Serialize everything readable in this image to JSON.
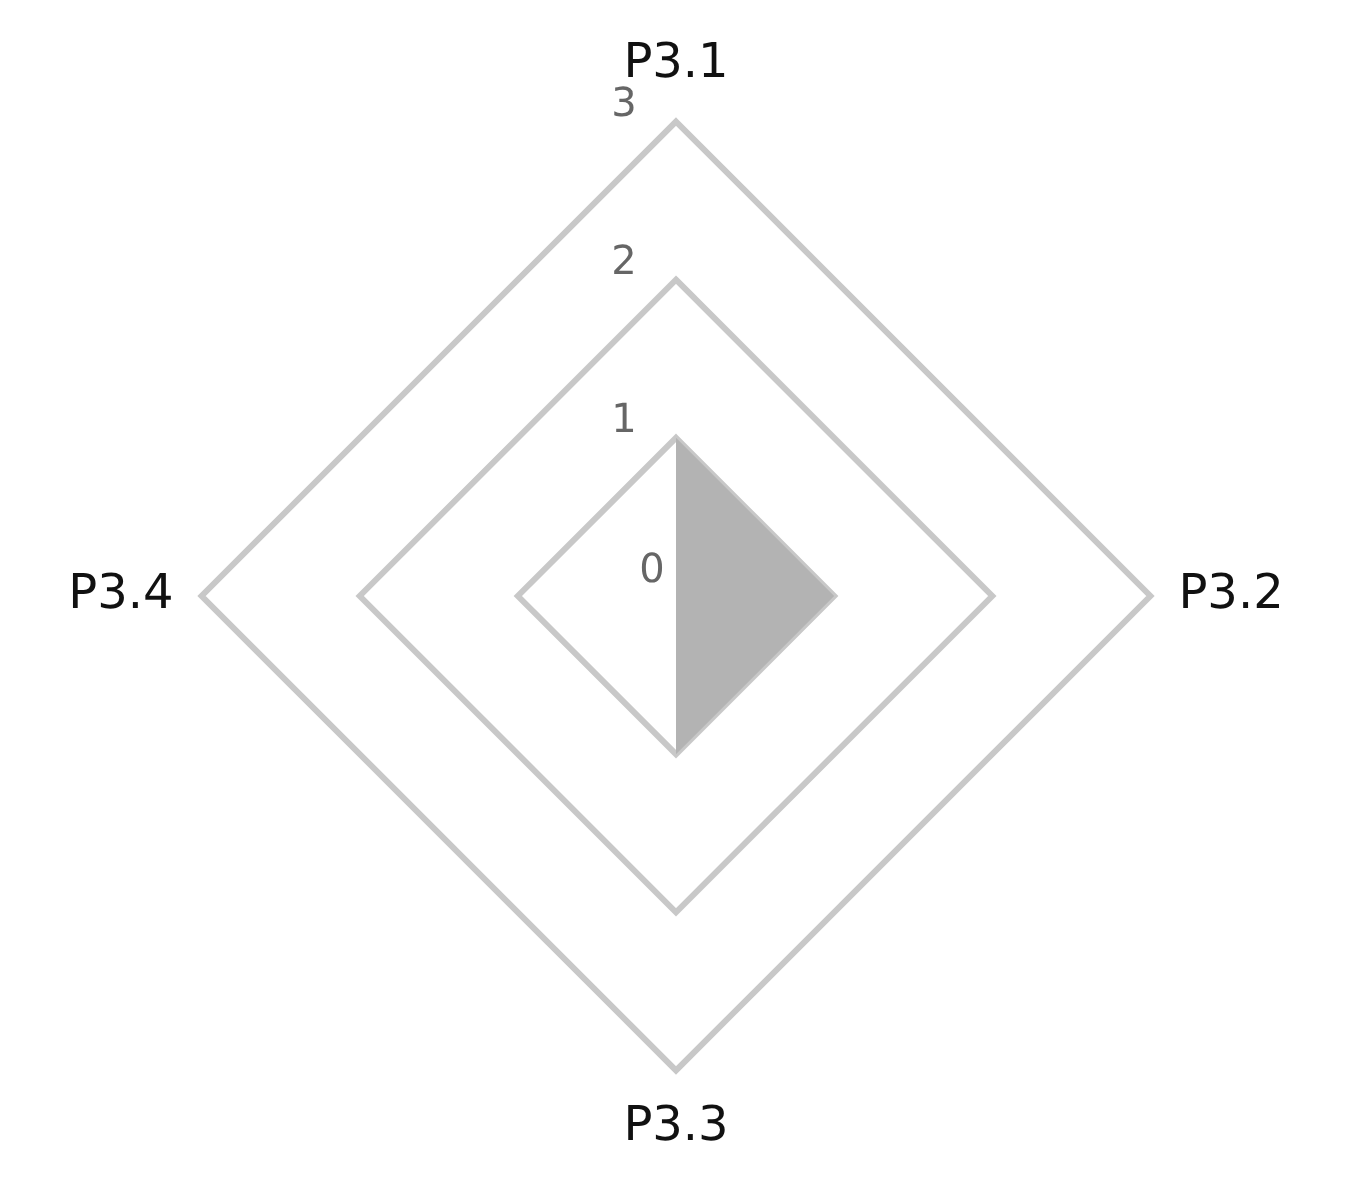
{
  "chart_data": {
    "type": "radar",
    "categories": [
      "P3.1",
      "P3.2",
      "P3.3",
      "P3.4"
    ],
    "series": [
      {
        "color": "#b3b3b3",
        "values": [
          1,
          1,
          1,
          0
        ]
      }
    ],
    "ylim": [
      0,
      3
    ],
    "yticks": [
      0,
      1,
      2,
      3
    ],
    "grid": true,
    "legend": false,
    "marker": "none"
  }
}
